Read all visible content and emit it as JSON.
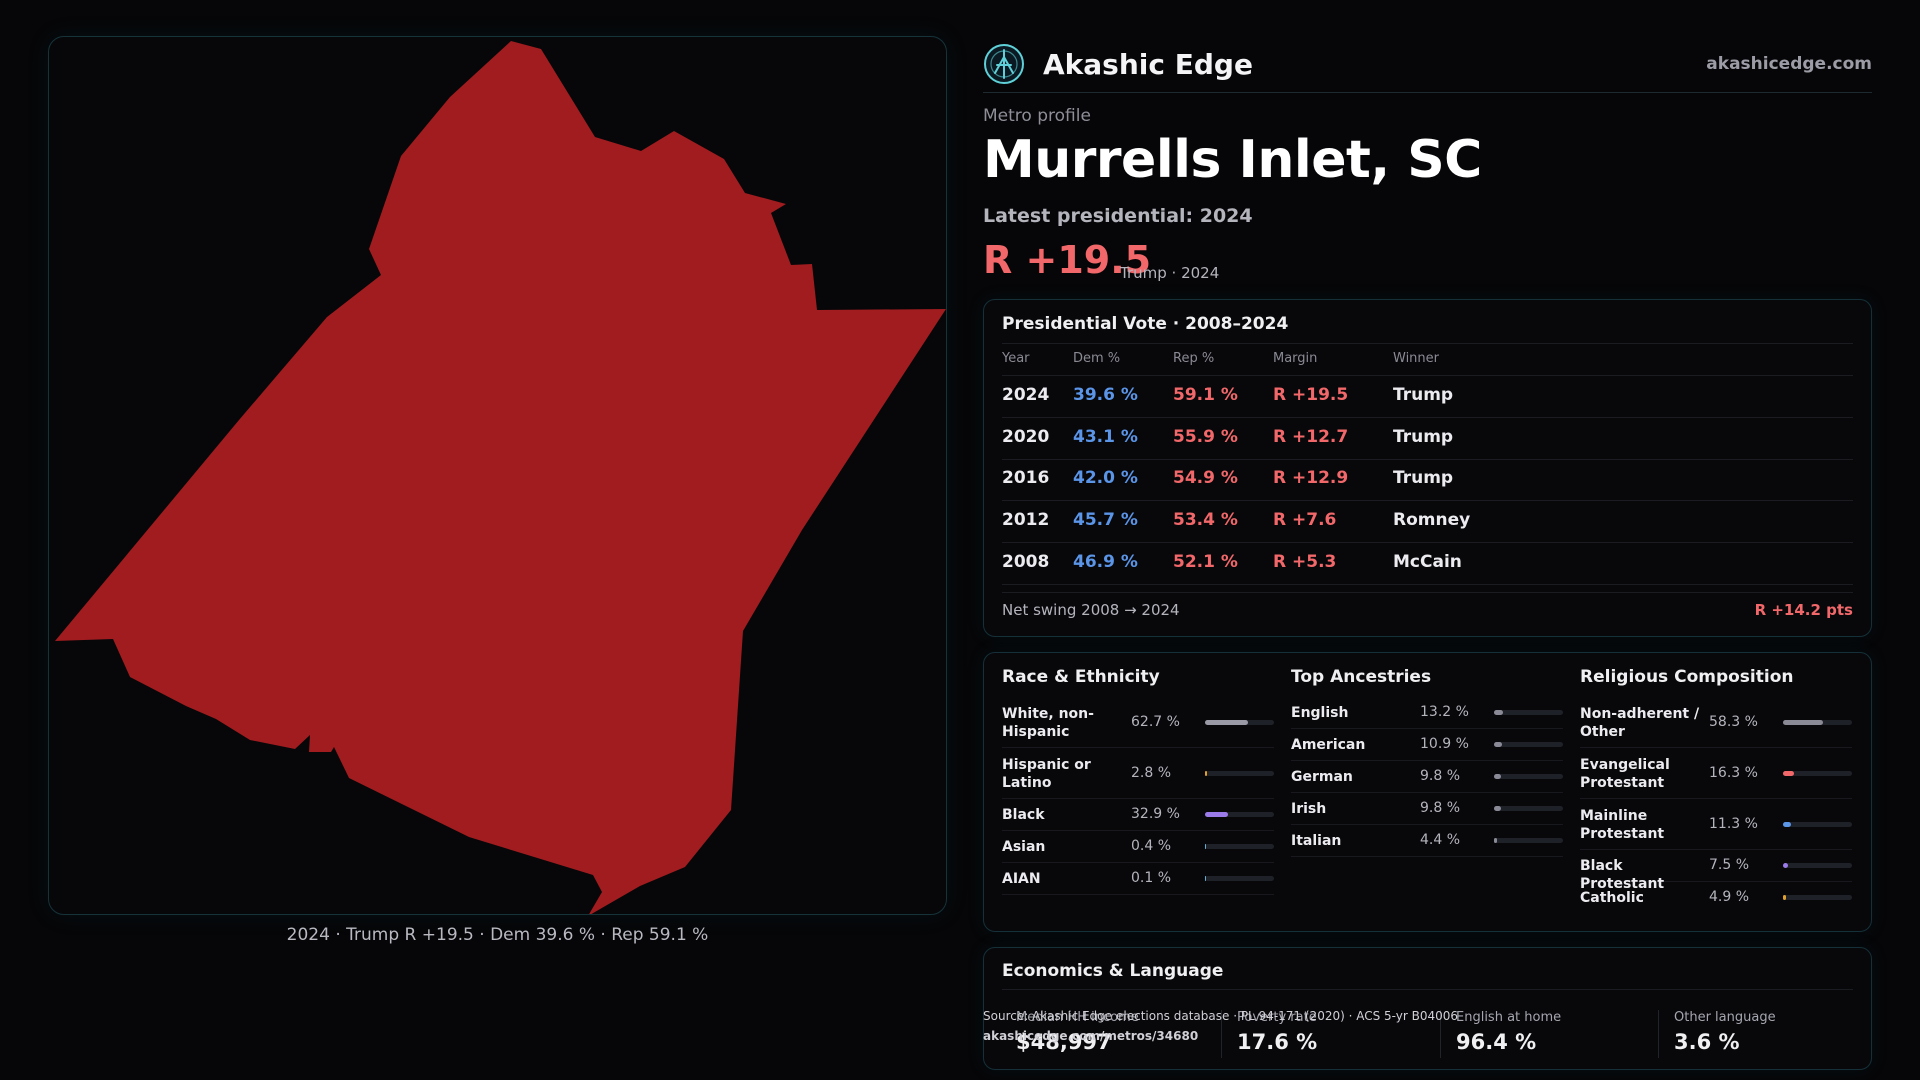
{
  "brand": {
    "name": "Akashic Edge",
    "domain": "akashicedge.com",
    "logo_icon": "akashic-logo-icon",
    "accent": "#5fd0d8"
  },
  "profile": {
    "eyebrow": "Metro profile",
    "title": "Murrells Inlet, SC",
    "latest_label": "Latest presidential: 2024",
    "headline_margin": "R +19.5",
    "headline_sub": "Trump · 2024"
  },
  "map": {
    "caption": "2024 · Trump R +19.5 · Dem 39.6 % · Rep 59.1 %",
    "fill_color": "#a01c1f"
  },
  "vote": {
    "title": "Presidential Vote · 2008–2024",
    "headers": {
      "year": "Year",
      "dem": "Dem %",
      "rep": "Rep %",
      "margin": "Margin",
      "winner": "Winner"
    },
    "rows": [
      {
        "year": "2024",
        "dem": "39.6 %",
        "rep": "59.1 %",
        "margin": "R +19.5",
        "winner": "Trump"
      },
      {
        "year": "2020",
        "dem": "43.1 %",
        "rep": "55.9 %",
        "margin": "R +12.7",
        "winner": "Trump"
      },
      {
        "year": "2016",
        "dem": "42.0 %",
        "rep": "54.9 %",
        "margin": "R +12.9",
        "winner": "Trump"
      },
      {
        "year": "2012",
        "dem": "45.7 %",
        "rep": "53.4 %",
        "margin": "R +7.6",
        "winner": "Romney"
      },
      {
        "year": "2008",
        "dem": "46.9 %",
        "rep": "52.1 %",
        "margin": "R +5.3",
        "winner": "McCain"
      }
    ],
    "swing_label": "Net swing 2008 → 2024",
    "swing_value": "R +14.2 pts",
    "dem_color": "#5b95e8",
    "rep_color": "#f2686a"
  },
  "race": {
    "title": "Race & Ethnicity",
    "items": [
      {
        "label": "White, non-Hispanic",
        "pct": "62.7 %",
        "value": 62.7,
        "color": "#9a9aa6"
      },
      {
        "label": "Hispanic or Latino",
        "pct": "2.8 %",
        "value": 2.8,
        "color": "#e0a030"
      },
      {
        "label": "Black",
        "pct": "32.9 %",
        "value": 32.9,
        "color": "#9b7bea"
      },
      {
        "label": "Asian",
        "pct": "0.4 %",
        "value": 0.4,
        "color": "#5fb0d8"
      },
      {
        "label": "AIAN",
        "pct": "0.1 %",
        "value": 0.1,
        "color": "#5fb0d8"
      }
    ]
  },
  "ancestry": {
    "title": "Top Ancestries",
    "items": [
      {
        "label": "English",
        "pct": "13.2 %",
        "value": 13.2,
        "color": "#8a8a96"
      },
      {
        "label": "American",
        "pct": "10.9 %",
        "value": 10.9,
        "color": "#8a8a96"
      },
      {
        "label": "German",
        "pct": "9.8 %",
        "value": 9.8,
        "color": "#8a8a96"
      },
      {
        "label": "Irish",
        "pct": "9.8 %",
        "value": 9.8,
        "color": "#8a8a96"
      },
      {
        "label": "Italian",
        "pct": "4.4 %",
        "value": 4.4,
        "color": "#8a8a96"
      }
    ]
  },
  "religion": {
    "title": "Religious Composition",
    "items": [
      {
        "label": "Non-adherent / Other",
        "pct": "58.3 %",
        "value": 58.3,
        "color": "#8a8a96"
      },
      {
        "label": "Evangelical Protestant",
        "pct": "16.3 %",
        "value": 16.3,
        "color": "#f2686a"
      },
      {
        "label": "Mainline Protestant",
        "pct": "11.3 %",
        "value": 11.3,
        "color": "#5b95e8"
      },
      {
        "label": "Black Protestant",
        "pct": "7.5 %",
        "value": 7.5,
        "color": "#9b7bea"
      },
      {
        "label": "Catholic",
        "pct": "4.9 %",
        "value": 4.9,
        "color": "#e0a030"
      }
    ]
  },
  "economics": {
    "title": "Economics & Language",
    "stats": [
      {
        "label": "Median HH income",
        "value": "$48,997"
      },
      {
        "label": "Poverty rate",
        "value": "17.6 %"
      },
      {
        "label": "English at home",
        "value": "96.4 %"
      },
      {
        "label": "Other language",
        "value": "3.6 %"
      }
    ]
  },
  "source": {
    "text": "Source: Akashic Edge elections database · PL 94-171 (2020) · ACS 5-yr B04006",
    "url": "akashicedge.com/metros/34680"
  }
}
